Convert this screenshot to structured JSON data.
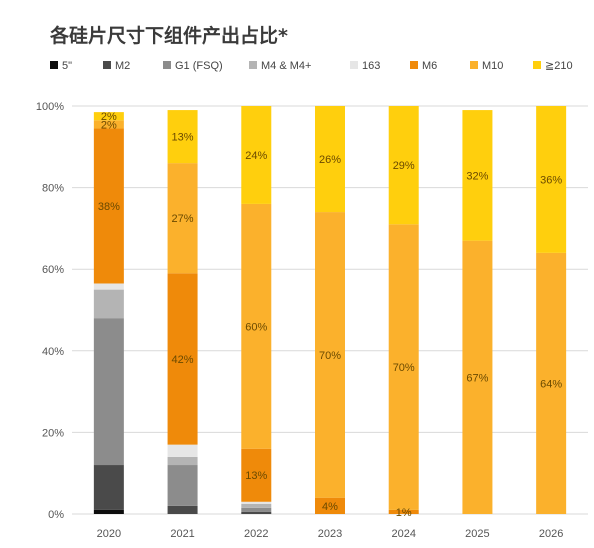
{
  "chart_data": {
    "type": "bar",
    "stacked": true,
    "title": "各硅片尺寸下组件产出占比*",
    "categories": [
      "2020",
      "2021",
      "2022",
      "2023",
      "2024",
      "2025",
      "2026"
    ],
    "ylim": [
      0,
      100
    ],
    "yticks": [
      "0%",
      "20%",
      "40%",
      "60%",
      "80%",
      "100%"
    ],
    "grid": true,
    "legend_position": "top",
    "series": [
      {
        "name": "5\"",
        "color": "#0d0d0d",
        "values": [
          1,
          0,
          0,
          0,
          0,
          0,
          0
        ],
        "labels": [
          "",
          "",
          "",
          "",
          "",
          "",
          ""
        ]
      },
      {
        "name": "M2",
        "color": "#4a4a4a",
        "values": [
          11,
          2,
          0.5,
          0,
          0,
          0,
          0
        ],
        "labels": [
          "",
          "",
          "",
          "",
          "",
          "",
          ""
        ]
      },
      {
        "name": "G1 (FSQ)",
        "color": "#8c8c8c",
        "values": [
          36,
          10,
          1,
          0,
          0,
          0,
          0
        ],
        "labels": [
          "",
          "",
          "",
          "",
          "",
          "",
          ""
        ]
      },
      {
        "name": "M4 & M4+",
        "color": "#b4b4b4",
        "values": [
          7,
          2,
          1,
          0,
          0,
          0,
          0
        ],
        "labels": [
          "",
          "",
          "",
          "",
          "",
          "",
          ""
        ]
      },
      {
        "name": "163",
        "color": "#e6e6e6",
        "values": [
          1.5,
          3,
          0.5,
          0,
          0,
          0,
          0
        ],
        "labels": [
          "",
          "",
          "",
          "",
          "",
          "",
          ""
        ]
      },
      {
        "name": "M6",
        "color": "#ef8a0a",
        "values": [
          38,
          42,
          13,
          4,
          1,
          0,
          0
        ],
        "labels": [
          "38%",
          "42%",
          "13%",
          "4%",
          "1%",
          "",
          ""
        ]
      },
      {
        "name": "M10",
        "color": "#fbb12c",
        "values": [
          2,
          27,
          60,
          70,
          70,
          67,
          64
        ],
        "labels": [
          "2%",
          "27%",
          "60%",
          "70%",
          "70%",
          "67%",
          "64%"
        ]
      },
      {
        "name": "≧210",
        "color": "#ffcf0d",
        "values": [
          2,
          13,
          24,
          26,
          29,
          32,
          36
        ],
        "labels": [
          "2%",
          "13%",
          "24%",
          "26%",
          "29%",
          "32%",
          "36%"
        ]
      }
    ]
  }
}
